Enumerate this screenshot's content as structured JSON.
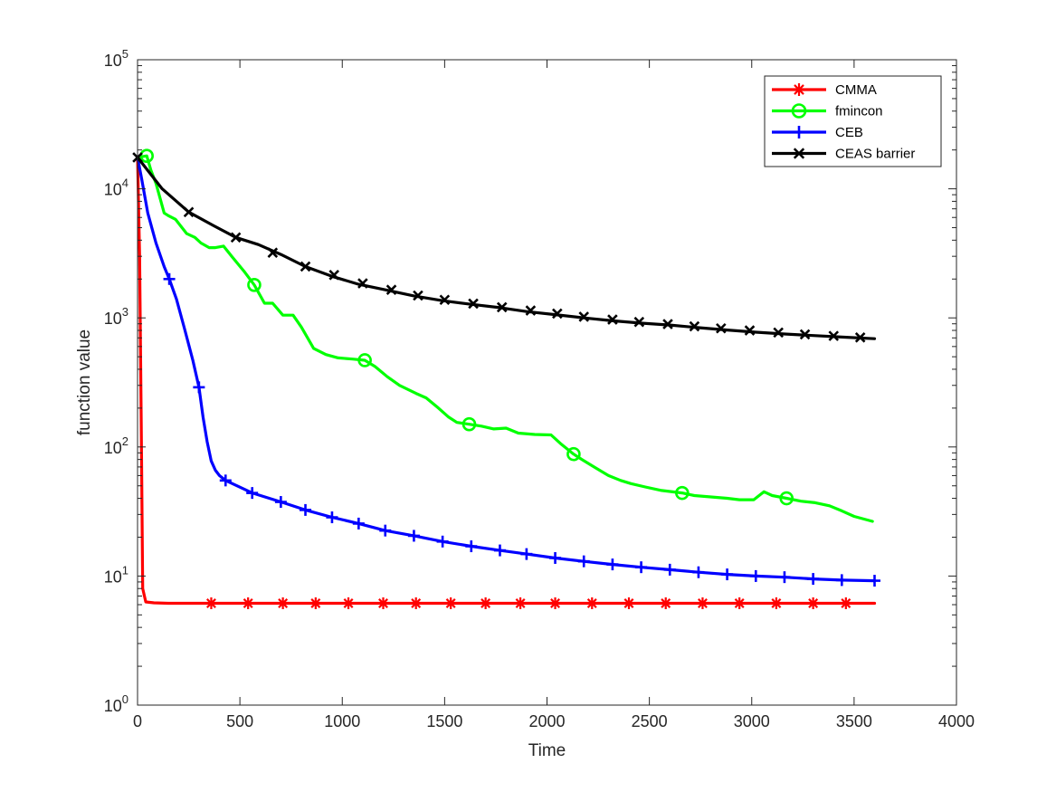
{
  "chart_data": {
    "type": "line",
    "title": "",
    "xlabel": "Time",
    "ylabel": "function value",
    "xlim": [
      0,
      4000
    ],
    "ylim": [
      1,
      100000
    ],
    "yscale": "log",
    "xticks": [
      0,
      500,
      1000,
      1500,
      2000,
      2500,
      3000,
      3500,
      4000
    ],
    "xtick_labels": [
      "0",
      "500",
      "1000",
      "1500",
      "2000",
      "2500",
      "3000",
      "3500",
      "4000"
    ],
    "yticks": [
      1,
      10,
      100,
      1000,
      10000,
      100000
    ],
    "ytick_labels": [
      {
        "base": "10",
        "exp": "0"
      },
      {
        "base": "10",
        "exp": "1"
      },
      {
        "base": "10",
        "exp": "2"
      },
      {
        "base": "10",
        "exp": "3"
      },
      {
        "base": "10",
        "exp": "4"
      },
      {
        "base": "10",
        "exp": "5"
      }
    ],
    "grid": false,
    "legend_position": "top-right",
    "series": [
      {
        "name": "CMMA",
        "color": "#ff0000",
        "marker": "asterisk",
        "x": [
          0,
          10,
          18,
          25,
          40,
          80,
          150,
          300,
          600,
          1200,
          2400,
          3600
        ],
        "y": [
          17500,
          3000,
          150,
          8,
          6.3,
          6.2,
          6.15,
          6.15,
          6.15,
          6.15,
          6.15,
          6.15
        ],
        "marker_x": [
          360,
          540,
          710,
          870,
          1030,
          1200,
          1360,
          1530,
          1700,
          1870,
          2040,
          2220,
          2400,
          2580,
          2760,
          2940,
          3120,
          3300,
          3460
        ],
        "marker_y": [
          6.15,
          6.15,
          6.15,
          6.15,
          6.15,
          6.15,
          6.15,
          6.15,
          6.15,
          6.15,
          6.15,
          6.15,
          6.15,
          6.15,
          6.15,
          6.15,
          6.15,
          6.15,
          6.15
        ]
      },
      {
        "name": "fmincon",
        "color": "#00ff00",
        "marker": "circle",
        "x": [
          0,
          45,
          65,
          90,
          130,
          150,
          185,
          240,
          280,
          310,
          350,
          380,
          420,
          460,
          520,
          570,
          620,
          660,
          710,
          760,
          800,
          860,
          920,
          980,
          1050,
          1110,
          1160,
          1220,
          1280,
          1360,
          1410,
          1470,
          1520,
          1560,
          1620,
          1680,
          1740,
          1800,
          1860,
          1940,
          2020,
          2070,
          2130,
          2170,
          2230,
          2300,
          2360,
          2410,
          2480,
          2560,
          2660,
          2720,
          2800,
          2880,
          2940,
          3010,
          3060,
          3100,
          3170,
          3240,
          3310,
          3380,
          3440,
          3500,
          3590
        ],
        "y": [
          17500,
          18000,
          14000,
          11000,
          6500,
          6200,
          5800,
          4500,
          4200,
          3800,
          3500,
          3500,
          3600,
          3000,
          2300,
          1800,
          1300,
          1300,
          1050,
          1050,
          850,
          580,
          520,
          490,
          480,
          470,
          420,
          350,
          300,
          260,
          240,
          200,
          170,
          155,
          150,
          145,
          138,
          140,
          128,
          125,
          124,
          105,
          88,
          80,
          70,
          60,
          55,
          52,
          49,
          46,
          44,
          42,
          41,
          40,
          39,
          39,
          45,
          42,
          40,
          38,
          37,
          35,
          32,
          29,
          26.5
        ],
        "marker_x": [
          45,
          570,
          1110,
          1620,
          2130,
          2660,
          3170
        ],
        "marker_y": [
          18000,
          1800,
          470,
          150,
          88,
          44,
          40
        ]
      },
      {
        "name": "CEB",
        "color": "#0000ff",
        "marker": "plus",
        "x": [
          0,
          20,
          50,
          90,
          130,
          155,
          190,
          230,
          270,
          300,
          320,
          340,
          360,
          380,
          400,
          430,
          560,
          700,
          820,
          950,
          1080,
          1210,
          1350,
          1490,
          1630,
          1770,
          1900,
          2040,
          2180,
          2320,
          2460,
          2600,
          2740,
          2880,
          3020,
          3160,
          3300,
          3440,
          3600
        ],
        "y": [
          17500,
          12000,
          6500,
          3800,
          2500,
          2000,
          1400,
          820,
          470,
          290,
          170,
          110,
          78,
          66,
          60,
          55,
          44,
          37.5,
          32.5,
          28.5,
          25.5,
          22.5,
          20.5,
          18.5,
          17,
          15.8,
          14.8,
          13.8,
          13,
          12.3,
          11.7,
          11.2,
          10.7,
          10.3,
          10,
          9.8,
          9.5,
          9.3,
          9.2
        ],
        "marker_x": [
          155,
          300,
          430,
          560,
          700,
          820,
          950,
          1080,
          1210,
          1350,
          1490,
          1630,
          1770,
          1900,
          2040,
          2180,
          2320,
          2460,
          2600,
          2740,
          2880,
          3020,
          3160,
          3300,
          3440,
          3600
        ],
        "marker_y": [
          2000,
          290,
          55,
          44,
          37.5,
          32.5,
          28.5,
          25.5,
          22.5,
          20.5,
          18.5,
          17,
          15.8,
          14.8,
          13.8,
          13,
          12.3,
          11.7,
          11.2,
          10.7,
          10.3,
          10,
          9.8,
          9.5,
          9.3,
          9.2
        ]
      },
      {
        "name": "CEAS barrier",
        "color": "#000000",
        "marker": "x",
        "x": [
          0,
          120,
          250,
          370,
          480,
          590,
          700,
          820,
          950,
          1080,
          1210,
          1350,
          1490,
          1620,
          1770,
          1900,
          2040,
          2180,
          2320,
          2460,
          2600,
          2740,
          2880,
          3020,
          3160,
          3300,
          3440,
          3600
        ],
        "y": [
          17500,
          10000,
          6600,
          5200,
          4200,
          3700,
          3100,
          2500,
          2100,
          1820,
          1650,
          1480,
          1360,
          1280,
          1200,
          1120,
          1060,
          1000,
          950,
          910,
          880,
          840,
          805,
          775,
          750,
          730,
          710,
          690
        ],
        "marker_x": [
          0,
          250,
          480,
          660,
          820,
          960,
          1100,
          1240,
          1370,
          1500,
          1640,
          1780,
          1920,
          2050,
          2180,
          2320,
          2450,
          2590,
          2720,
          2850,
          2990,
          3130,
          3260,
          3400,
          3530
        ],
        "marker_y": [
          17500,
          6600,
          4200,
          3200,
          2500,
          2150,
          1850,
          1650,
          1490,
          1380,
          1290,
          1210,
          1140,
          1080,
          1020,
          970,
          930,
          895,
          860,
          830,
          800,
          770,
          745,
          725,
          705
        ]
      }
    ]
  }
}
